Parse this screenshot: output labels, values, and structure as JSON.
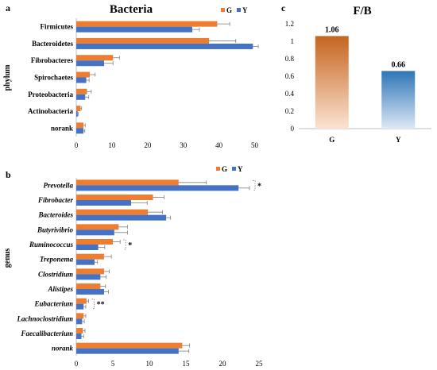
{
  "chart_data": [
    {
      "panel": "a",
      "type": "bar",
      "orientation": "horizontal",
      "title": "Bacteria",
      "ylabel": "phylum",
      "xlabel": "",
      "xlim": [
        0,
        55
      ],
      "xticks": [
        0,
        10,
        20,
        30,
        40,
        50
      ],
      "legend": "top-right",
      "categories": [
        "Firmicutes",
        "Bacteroidetes",
        "Fibrobacteres",
        "Spirochaetes",
        "Proteobacteria",
        "Actinobacteria",
        "norank"
      ],
      "series": [
        {
          "name": "G",
          "color": "#ED7D31",
          "values": [
            39.5,
            37.2,
            10.3,
            3.8,
            3.0,
            1.2,
            2.0
          ],
          "errors": [
            3.5,
            7.5,
            1.8,
            1.5,
            1.2,
            0.3,
            0.5
          ]
        },
        {
          "name": "Y",
          "color": "#4472C4",
          "values": [
            32.5,
            49.5,
            7.8,
            2.8,
            2.5,
            0.4,
            2.0
          ],
          "errors": [
            2.0,
            1.5,
            2.5,
            0.8,
            1.0,
            0.2,
            0.4
          ]
        }
      ]
    },
    {
      "panel": "b",
      "type": "bar",
      "orientation": "horizontal",
      "title": "",
      "ylabel": "genus",
      "xlabel": "",
      "xlim": [
        0,
        25
      ],
      "xticks": [
        0,
        5,
        10,
        15,
        20,
        25
      ],
      "legend": "top-right",
      "categories": [
        "Prevotella",
        "Fibrobacter",
        "Bacteroides",
        "Butyrivibrio",
        "Ruminococcus",
        "Treponema",
        "Clostridium",
        "Alistipes",
        "Eubacterium",
        "Lachnoclostridium",
        "Faecalibacterium",
        "norank"
      ],
      "series": [
        {
          "name": "G",
          "color": "#ED7D31",
          "values": [
            14.0,
            10.5,
            9.8,
            5.8,
            5.0,
            3.8,
            3.8,
            3.3,
            1.4,
            1.0,
            0.9,
            14.5
          ],
          "errors": [
            3.8,
            1.5,
            2.0,
            1.2,
            1.0,
            1.0,
            0.7,
            0.7,
            0.3,
            0.3,
            0.3,
            1.0
          ]
        },
        {
          "name": "Y",
          "color": "#4472C4",
          "values": [
            22.2,
            7.5,
            12.3,
            5.2,
            3.0,
            2.5,
            3.3,
            3.8,
            1.0,
            0.8,
            0.7,
            14.0
          ],
          "errors": [
            1.5,
            2.2,
            0.6,
            1.8,
            0.9,
            0.4,
            0.8,
            0.6,
            0.3,
            0.3,
            0.3,
            1.4
          ]
        }
      ],
      "significance": [
        {
          "category": "Prevotella",
          "label": "*"
        },
        {
          "category": "Ruminococcus",
          "label": "*"
        },
        {
          "category": "Eubacterium",
          "label": "**"
        }
      ]
    },
    {
      "panel": "c",
      "type": "bar",
      "orientation": "vertical",
      "title": "F/B",
      "xlabel": "",
      "ylabel": "",
      "ylim": [
        0,
        1.2
      ],
      "yticks": [
        0,
        0.2,
        0.4,
        0.6,
        0.8,
        1,
        1.2
      ],
      "categories": [
        "G",
        "Y"
      ],
      "values": [
        1.06,
        0.66
      ],
      "value_labels": [
        "1.06",
        "0.66"
      ],
      "colors": [
        "#C5651F",
        "#2E75B6"
      ]
    }
  ]
}
